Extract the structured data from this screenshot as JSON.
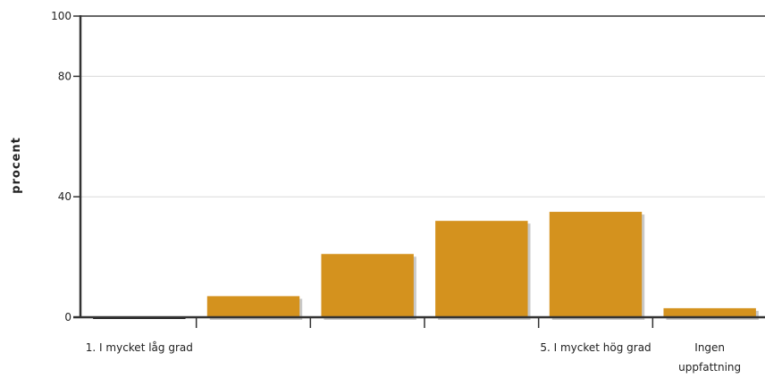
{
  "chart_data": {
    "type": "bar",
    "ylabel": "procent",
    "xlabel": "",
    "title": "",
    "ylim": [
      0,
      100
    ],
    "yticks": [
      0,
      40,
      80,
      100
    ],
    "grid": true,
    "categories": [
      "1. I mycket låg grad",
      "",
      "",
      "",
      "5. I mycket hög grad",
      "Ingen uppfattning"
    ],
    "values": [
      0,
      7,
      21,
      32,
      35,
      3
    ],
    "colors": {
      "bar": "#D4921E",
      "shadow": "#C9C9C9",
      "axis": "#333333",
      "grid": "#D9D9D9"
    }
  }
}
